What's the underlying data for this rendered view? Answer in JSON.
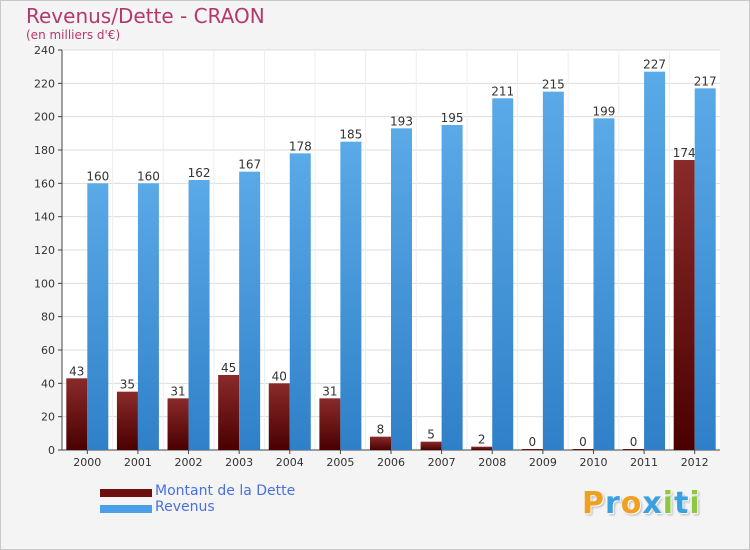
{
  "header": {
    "title": "Revenus/Dette - CRAON",
    "subtitle": "(en milliers d'€)"
  },
  "colors": {
    "dette_top": "#8a2a2a",
    "dette_bottom": "#4a0000",
    "revenus_top": "#5aaae8",
    "revenus_bottom": "#2f80c8",
    "title": "#b5386b",
    "legend_text": "#4a6fe0"
  },
  "legend": {
    "items": [
      {
        "label": "Montant de la Dette",
        "color": "#6b0f0f"
      },
      {
        "label": "Revenus",
        "color": "#4aa0e6"
      }
    ]
  },
  "logo": {
    "text": "Proxiti"
  },
  "chart_data": {
    "type": "bar",
    "categories": [
      "2000",
      "2001",
      "2002",
      "2003",
      "2004",
      "2005",
      "2006",
      "2007",
      "2008",
      "2009",
      "2010",
      "2011",
      "2012"
    ],
    "series": [
      {
        "name": "Montant de la Dette",
        "values": [
          43,
          35,
          31,
          45,
          40,
          31,
          8,
          5,
          2,
          0,
          0,
          0,
          174
        ]
      },
      {
        "name": "Revenus",
        "values": [
          160,
          160,
          162,
          167,
          178,
          185,
          193,
          195,
          211,
          215,
          199,
          227,
          217
        ]
      }
    ],
    "ylim": [
      0,
      240
    ],
    "yticks": [
      0,
      20,
      40,
      60,
      80,
      100,
      120,
      140,
      160,
      180,
      200,
      220,
      240
    ],
    "grid": true,
    "legend_position": "bottom-left"
  }
}
